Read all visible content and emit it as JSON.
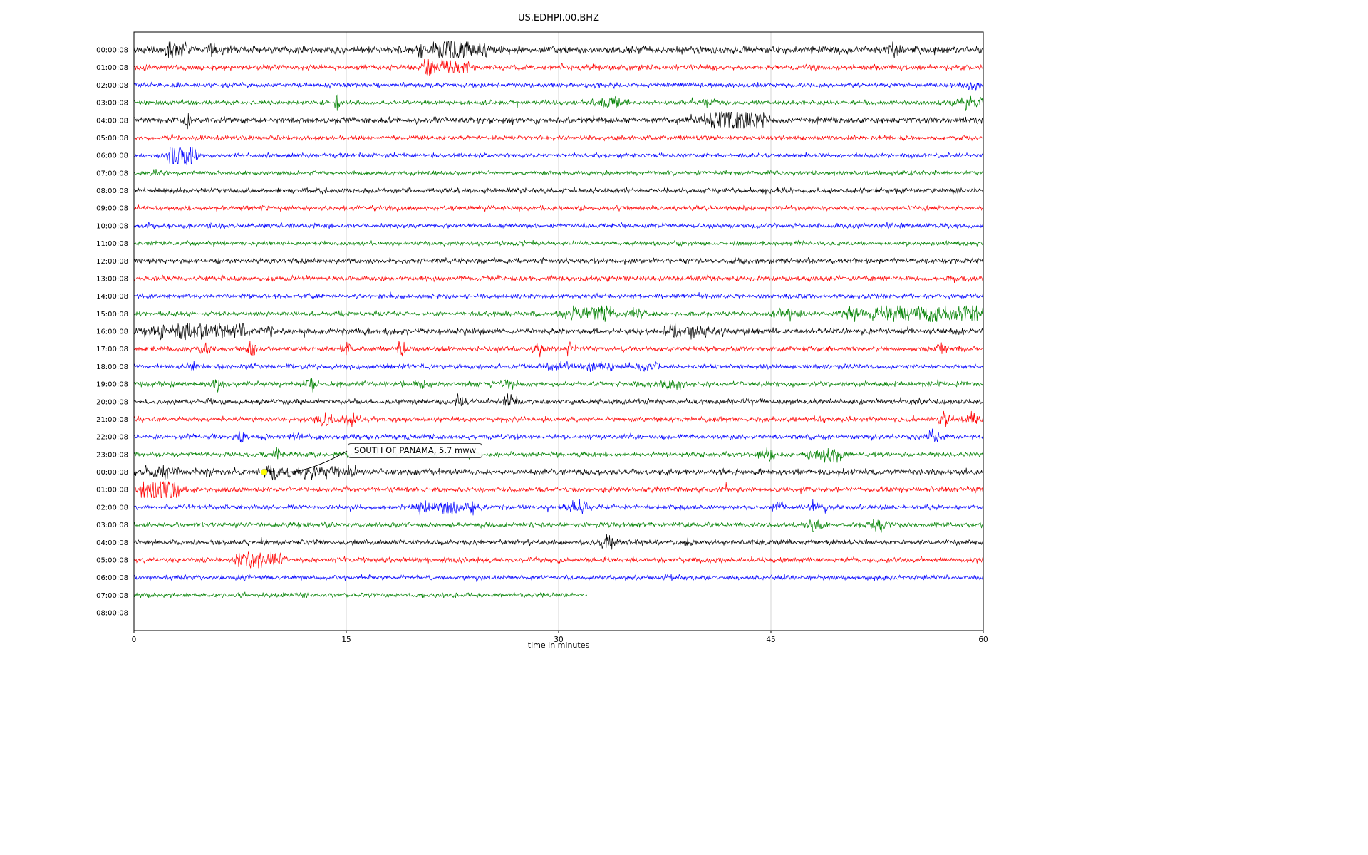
{
  "chart_data": {
    "type": "line",
    "subtype": "seismogram-dayplot",
    "title": "US.EDHPI.00.BHZ",
    "xlabel": "time in minutes",
    "xticks": [
      0,
      15,
      30,
      45,
      60
    ],
    "xlim": [
      0,
      60
    ],
    "minutes_per_row": 60,
    "color_cycle": [
      "#000000",
      "#ff0000",
      "#0000ff",
      "#008000"
    ],
    "grid_color": "#cccccc",
    "axis_color": "#000000",
    "annotation": {
      "text": "SOUTH OF PANAMA, 5.7 mww",
      "row_index": 24,
      "x_minutes": 9.2,
      "marker_color": "#ffff00"
    },
    "rows": [
      {
        "label": "00:00:08",
        "color": "#000000",
        "base": 2.2,
        "end": 60,
        "bursts": [
          [
            2.5,
            0.25,
            6
          ],
          [
            3.4,
            0.2,
            5
          ],
          [
            5.5,
            0.2,
            3.5
          ],
          [
            20.4,
            0.3,
            5
          ],
          [
            21.9,
            0.5,
            7
          ],
          [
            23.3,
            0.5,
            6
          ],
          [
            24.6,
            0.3,
            4
          ],
          [
            53.5,
            0.25,
            6
          ]
        ]
      },
      {
        "label": "01:00:08",
        "color": "#ff0000",
        "base": 1.5,
        "end": 60,
        "bursts": [
          [
            20.8,
            0.25,
            6
          ],
          [
            22.2,
            0.5,
            4
          ],
          [
            23.2,
            0.3,
            3
          ]
        ]
      },
      {
        "label": "02:00:08",
        "color": "#0000ff",
        "base": 1.3,
        "end": 60,
        "bursts": [
          [
            59.3,
            0.4,
            2
          ]
        ]
      },
      {
        "label": "03:00:08",
        "color": "#008000",
        "base": 1.3,
        "end": 60,
        "bursts": [
          [
            14.3,
            0.12,
            7
          ],
          [
            33.5,
            0.8,
            3
          ],
          [
            40.5,
            0.4,
            2
          ],
          [
            59.0,
            0.9,
            2.5
          ]
        ]
      },
      {
        "label": "04:00:08",
        "color": "#000000",
        "base": 1.8,
        "end": 60,
        "bursts": [
          [
            3.7,
            0.15,
            5
          ],
          [
            41.3,
            1.0,
            4
          ],
          [
            42.8,
            0.7,
            6
          ],
          [
            44.0,
            0.5,
            4
          ]
        ]
      },
      {
        "label": "05:00:08",
        "color": "#ff0000",
        "base": 1.3,
        "end": 60,
        "bursts": [
          [
            2.8,
            0.3,
            1.2
          ]
        ]
      },
      {
        "label": "06:00:08",
        "color": "#0000ff",
        "base": 1.3,
        "end": 60,
        "bursts": [
          [
            2.7,
            0.2,
            8
          ],
          [
            3.3,
            0.35,
            9
          ],
          [
            4.1,
            0.3,
            5
          ]
        ]
      },
      {
        "label": "07:00:08",
        "color": "#008000",
        "base": 1.2,
        "end": 60,
        "bursts": [
          [
            1.5,
            0.3,
            1.5
          ]
        ]
      },
      {
        "label": "08:00:08",
        "color": "#000000",
        "base": 1.5,
        "end": 60,
        "bursts": []
      },
      {
        "label": "09:00:08",
        "color": "#ff0000",
        "base": 1.4,
        "end": 60,
        "bursts": []
      },
      {
        "label": "10:00:08",
        "color": "#0000ff",
        "base": 1.3,
        "end": 60,
        "bursts": []
      },
      {
        "label": "11:00:08",
        "color": "#008000",
        "base": 1.3,
        "end": 60,
        "bursts": []
      },
      {
        "label": "12:00:08",
        "color": "#000000",
        "base": 1.5,
        "end": 60,
        "bursts": []
      },
      {
        "label": "13:00:08",
        "color": "#ff0000",
        "base": 1.5,
        "end": 60,
        "bursts": []
      },
      {
        "label": "14:00:08",
        "color": "#0000ff",
        "base": 1.3,
        "end": 60,
        "bursts": [
          [
            12.5,
            0.3,
            1.2
          ]
        ]
      },
      {
        "label": "15:00:08",
        "color": "#008000",
        "base": 1.4,
        "end": 60,
        "bursts": [
          [
            31.0,
            0.5,
            5
          ],
          [
            33.0,
            0.6,
            5
          ],
          [
            35.5,
            0.5,
            3
          ],
          [
            46.0,
            0.5,
            3
          ],
          [
            51.0,
            0.6,
            3.5
          ],
          [
            53.0,
            0.6,
            4
          ],
          [
            54.5,
            0.5,
            3.5
          ],
          [
            56.5,
            0.8,
            4
          ],
          [
            58.5,
            0.6,
            4
          ],
          [
            59.5,
            0.4,
            3
          ]
        ]
      },
      {
        "label": "16:00:08",
        "color": "#000000",
        "base": 1.8,
        "end": 60,
        "bursts": [
          [
            1.5,
            0.5,
            3
          ],
          [
            3.5,
            0.6,
            4
          ],
          [
            4.5,
            0.4,
            4
          ],
          [
            6.0,
            0.8,
            3.5
          ],
          [
            7.5,
            0.4,
            3
          ],
          [
            9.5,
            0.3,
            2.5
          ],
          [
            38.0,
            0.4,
            3.5
          ],
          [
            39.6,
            0.5,
            3
          ],
          [
            41.0,
            0.5,
            2.5
          ]
        ]
      },
      {
        "label": "17:00:08",
        "color": "#ff0000",
        "base": 1.4,
        "end": 60,
        "bursts": [
          [
            5.0,
            0.25,
            4
          ],
          [
            8.3,
            0.25,
            4
          ],
          [
            15.0,
            0.2,
            3.5
          ],
          [
            18.8,
            0.22,
            3.5
          ],
          [
            28.5,
            0.3,
            4
          ],
          [
            30.8,
            0.3,
            3.5
          ],
          [
            57.0,
            0.2,
            3
          ]
        ]
      },
      {
        "label": "18:00:08",
        "color": "#0000ff",
        "base": 1.4,
        "end": 60,
        "bursts": [
          [
            3.8,
            0.3,
            2.5
          ],
          [
            30.0,
            0.5,
            2
          ],
          [
            33.0,
            1.2,
            2.5
          ],
          [
            36.0,
            0.6,
            2.5
          ]
        ]
      },
      {
        "label": "19:00:08",
        "color": "#008000",
        "base": 1.5,
        "end": 60,
        "bursts": [
          [
            6.0,
            0.3,
            3.5
          ],
          [
            12.5,
            0.22,
            4.5
          ],
          [
            20.3,
            0.3,
            2.5
          ],
          [
            26.5,
            0.3,
            4
          ],
          [
            38.0,
            0.5,
            2.5
          ]
        ]
      },
      {
        "label": "20:00:08",
        "color": "#000000",
        "base": 1.5,
        "end": 60,
        "bursts": [
          [
            23.0,
            0.22,
            5
          ],
          [
            26.6,
            0.28,
            4
          ]
        ]
      },
      {
        "label": "21:00:08",
        "color": "#ff0000",
        "base": 1.5,
        "end": 60,
        "bursts": [
          [
            13.5,
            0.4,
            3.5
          ],
          [
            15.5,
            0.4,
            3
          ],
          [
            57.3,
            0.3,
            4
          ],
          [
            59.2,
            0.3,
            3.5
          ]
        ]
      },
      {
        "label": "22:00:08",
        "color": "#0000ff",
        "base": 1.4,
        "end": 60,
        "bursts": [
          [
            7.5,
            0.22,
            3
          ],
          [
            11.5,
            0.22,
            3.5
          ],
          [
            56.5,
            0.3,
            3.5
          ]
        ]
      },
      {
        "label": "23:00:08",
        "color": "#008000",
        "base": 1.4,
        "end": 60,
        "bursts": [
          [
            10.0,
            0.3,
            2
          ],
          [
            44.8,
            0.4,
            3.5
          ],
          [
            48.5,
            0.6,
            3.5
          ],
          [
            49.6,
            0.4,
            3
          ]
        ]
      },
      {
        "label": "00:00:08",
        "color": "#000000",
        "base": 1.8,
        "end": 60,
        "bursts": [
          [
            1.5,
            0.8,
            2.5
          ],
          [
            5.5,
            0.3,
            2.5
          ],
          [
            9.7,
            0.3,
            4
          ],
          [
            11.0,
            0.5,
            3
          ],
          [
            12.5,
            0.4,
            3.5
          ],
          [
            14.0,
            0.4,
            3
          ],
          [
            15.5,
            0.3,
            3
          ]
        ]
      },
      {
        "label": "01:00:08",
        "color": "#ff0000",
        "base": 1.5,
        "end": 60,
        "bursts": [
          [
            0.7,
            0.3,
            5
          ],
          [
            1.5,
            0.4,
            6
          ],
          [
            2.3,
            0.4,
            5
          ],
          [
            3.0,
            0.3,
            3
          ]
        ]
      },
      {
        "label": "02:00:08",
        "color": "#0000ff",
        "base": 1.4,
        "end": 60,
        "bursts": [
          [
            20.5,
            0.4,
            3
          ],
          [
            22.3,
            0.5,
            4
          ],
          [
            24.0,
            0.4,
            3.5
          ],
          [
            31.5,
            0.4,
            4.5
          ],
          [
            45.5,
            0.3,
            3
          ],
          [
            48.3,
            0.4,
            3.5
          ]
        ]
      },
      {
        "label": "03:00:08",
        "color": "#008000",
        "base": 1.4,
        "end": 60,
        "bursts": [
          [
            48.0,
            0.4,
            2.5
          ],
          [
            52.5,
            0.4,
            3.5
          ]
        ]
      },
      {
        "label": "04:00:08",
        "color": "#000000",
        "base": 1.5,
        "end": 60,
        "bursts": [
          [
            33.5,
            0.4,
            3.5
          ],
          [
            39.0,
            0.3,
            2.5
          ]
        ]
      },
      {
        "label": "05:00:08",
        "color": "#ff0000",
        "base": 1.5,
        "end": 60,
        "bursts": [
          [
            7.8,
            0.5,
            4
          ],
          [
            8.8,
            0.4,
            4.5
          ],
          [
            10.0,
            0.4,
            4
          ]
        ]
      },
      {
        "label": "06:00:08",
        "color": "#0000ff",
        "base": 1.4,
        "end": 60,
        "bursts": []
      },
      {
        "label": "07:00:08",
        "color": "#008000",
        "base": 1.4,
        "end": 32,
        "bursts": []
      },
      {
        "label": "08:00:08",
        "color": "#000000",
        "base": 0,
        "end": 0,
        "bursts": []
      }
    ]
  }
}
